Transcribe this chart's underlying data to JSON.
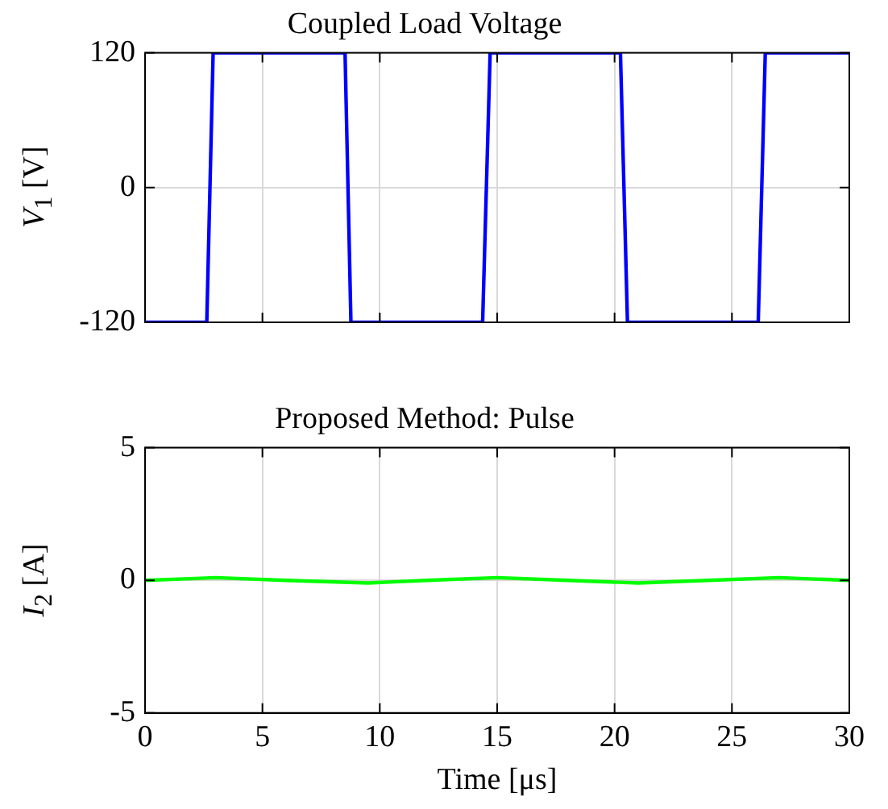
{
  "chart_data": [
    {
      "type": "line",
      "title": "Coupled Load Voltage",
      "ylabel": "V$_{1}$ [V]",
      "xlim": [
        0,
        30
      ],
      "xticks": [
        0,
        5,
        10,
        15,
        20,
        25,
        30
      ],
      "ylim": [
        -120,
        120
      ],
      "yticks": [
        -120,
        0,
        120
      ],
      "grid": true,
      "tick_labels": "y",
      "series": [
        {
          "color": "#0000ff",
          "x": [
            0,
            2.63,
            2.9,
            8.52,
            8.77,
            14.38,
            14.7,
            20.25,
            20.55,
            26.12,
            26.42,
            30
          ],
          "values": [
            -120,
            -120,
            120,
            120,
            -120,
            -120,
            120,
            120,
            -120,
            -120,
            120,
            120
          ]
        }
      ]
    },
    {
      "type": "line",
      "title": "Proposed Method: Pulse",
      "xlabel": "Time [μs]",
      "ylabel": "I$_{2}$ [A]",
      "xlim": [
        0,
        30
      ],
      "xticks": [
        0,
        5,
        10,
        15,
        20,
        25,
        30
      ],
      "ylim": [
        -5,
        5
      ],
      "yticks": [
        -5,
        0,
        5
      ],
      "grid": true,
      "series": [
        {
          "color": "#00ff00",
          "x": [
            0,
            3,
            6,
            9.5,
            12,
            15,
            18,
            21,
            24,
            27,
            30
          ],
          "values": [
            0,
            0.1,
            0,
            -0.1,
            0,
            0.1,
            0,
            -0.1,
            0,
            0.1,
            0
          ]
        }
      ]
    }
  ]
}
